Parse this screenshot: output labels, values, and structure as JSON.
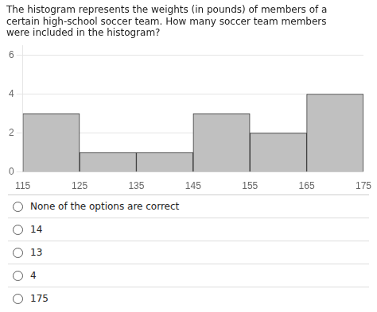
{
  "chart_data": {
    "type": "histogram",
    "title": [
      "The histogram represents the weights (in pounds) of members of a",
      "certain high-school soccer team. How many soccer team members",
      "were included in the histogram?"
    ],
    "bins": [
      115,
      125,
      135,
      145,
      155,
      165,
      175
    ],
    "values": [
      3,
      1,
      1,
      3,
      2,
      4
    ],
    "color": "#c0c0c0",
    "xlim": [
      115,
      175
    ],
    "xticks": [
      115,
      125,
      135,
      145,
      155,
      165,
      175
    ],
    "ylim": [
      0,
      6.5
    ],
    "yticks": [
      0,
      2,
      4,
      6
    ],
    "grid": true,
    "annotations": [
      "None of the options are correct",
      "14",
      "13",
      "4",
      "175"
    ]
  }
}
